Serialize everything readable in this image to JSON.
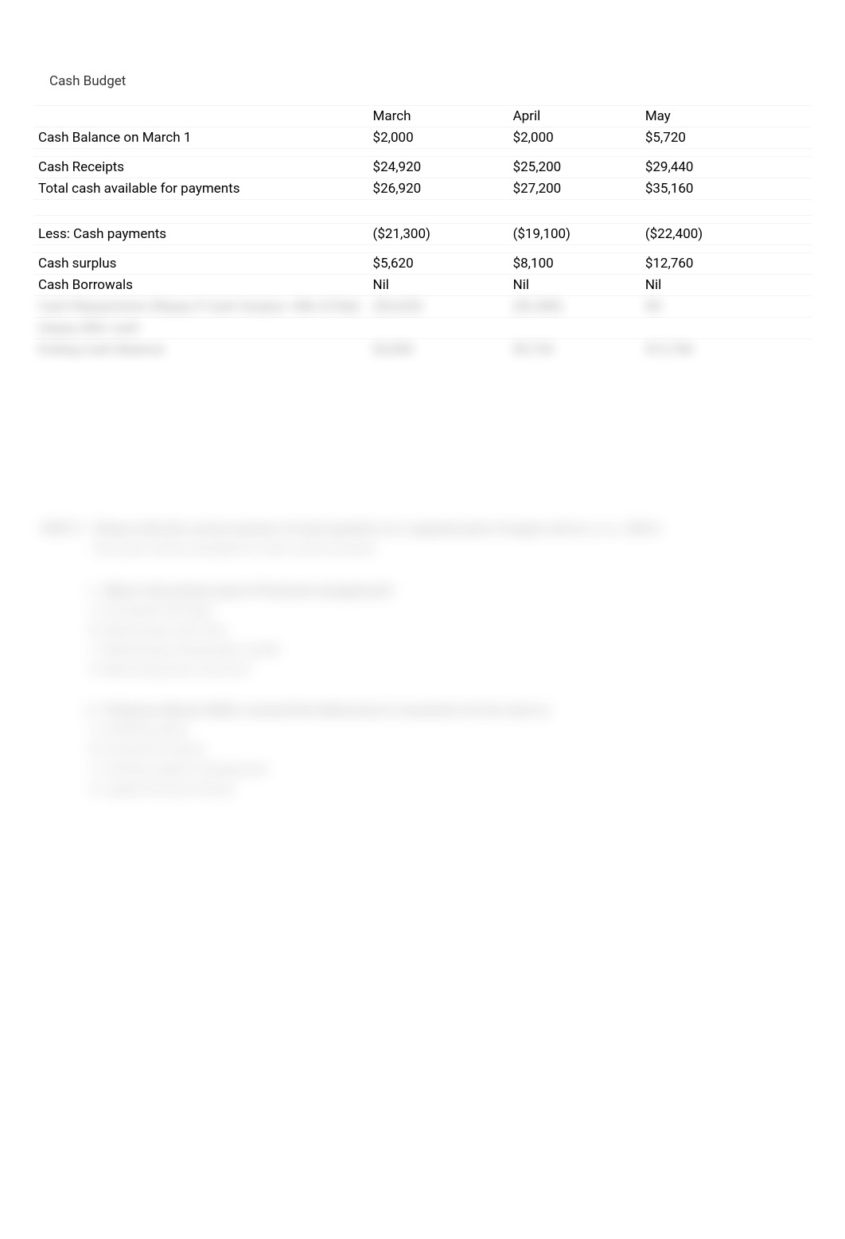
{
  "title": "Cash Budget",
  "table": {
    "columns": [
      "",
      "March",
      "April",
      "May"
    ],
    "column_widths_pct": [
      43,
      18,
      17,
      22
    ],
    "row_stripe_color": "#f4f4f4",
    "text_color": "#000000",
    "font_size_pt": 13,
    "rows": {
      "cash_balance": {
        "label": "Cash Balance on March 1",
        "march": "$2,000",
        "april": "$2,000",
        "may": "$5,720"
      },
      "cash_receipts": {
        "label": "Cash Receipts",
        "march": "$24,920",
        "april": "$25,200",
        "may": "$29,440"
      },
      "total_available": {
        "label": "Total cash available for payments",
        "march": "$26,920",
        "april": "$27,200",
        "may": "$35,160"
      },
      "less_payments": {
        "label": "Less: Cash payments",
        "march": "($21,300)",
        "april": "($19,100)",
        "may": "($22,400)"
      },
      "cash_surplus": {
        "label": "Cash surplus",
        "march": "$5,620",
        "april": "$8,100",
        "may": "$12,760"
      },
      "cash_borrowals": {
        "label": "Cash Borrowals",
        "march": "Nil",
        "april": "Nil",
        "may": "Nil"
      }
    }
  },
  "obscured_rows": [
    {
      "label": "Cash Repayments (Repay if Cash Surplus >Min El Bal)",
      "march": "($3,620)",
      "april": "($2,380)",
      "may": "Nil"
    },
    {
      "label": "(repay after cash",
      "march": "",
      "april": "",
      "may": ""
    },
    {
      "label": "Ending Cash Balance",
      "march": "$2,000",
      "april": "$5,720",
      "may": "$12,760"
    }
  ],
  "obscured_text": {
    "part_label": "PART C",
    "part_text1": "Please write the correct answers of each question on a separate piece of paper and as e, i.e., CDE A",
    "part_text2": "One point will be awarded for each correct answer.",
    "q1": {
      "stem": "What is the primary goal of financial management?",
      "a": "A. Increased earnings",
      "b": "B. Maximising cash flow",
      "c": "C. Maximising shareholder wealth",
      "d": "D. Minimizing risk of the firm"
    },
    "q2": {
      "stem": "Professor Merton Miller received the Nobel prize in economics for his work on",
      "a": "A. dividend policy",
      "b": "B. investment theory",
      "c": "C. working capital management",
      "d": "D. capital structure theory"
    }
  },
  "colors": {
    "background": "#ffffff",
    "text": "#000000",
    "title": "#333333",
    "row_border": "#f4f4f4",
    "blur_text": "#555555"
  }
}
